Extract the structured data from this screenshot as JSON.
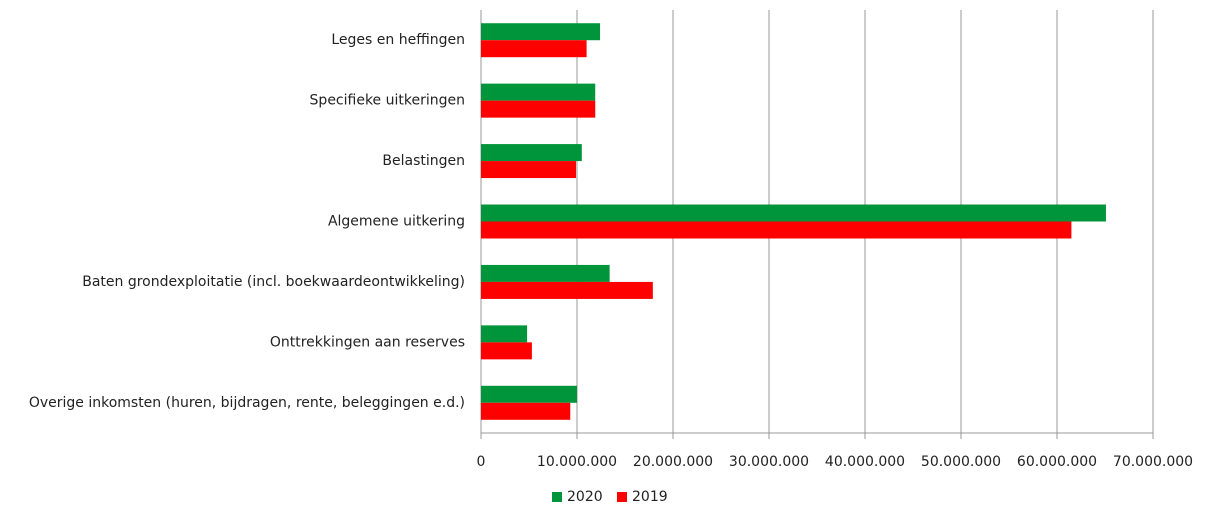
{
  "chart_data": {
    "type": "hbar",
    "categories": [
      "Leges en heffingen",
      "Specifieke uitkeringen",
      "Belastingen",
      "Algemene uitkering",
      "Baten grondexploitatie (incl. boekwaardeontwikkeling)",
      "Onttrekkingen aan reserves",
      "Overige inkomsten (huren, bijdragen, rente, beleggingen e.d.)"
    ],
    "series": [
      {
        "name": "2020",
        "color": "#00953a",
        "values": [
          12400000,
          11900000,
          10500000,
          65100000,
          13400000,
          4800000,
          10000000
        ]
      },
      {
        "name": "2019",
        "color": "#ff0000",
        "values": [
          11000000,
          11900000,
          9900000,
          61500000,
          17900000,
          5300000,
          9300000
        ]
      }
    ],
    "xlim": [
      0,
      70000000
    ],
    "xticks": [
      0,
      {
        "value": 10000000,
        "label": "10.000.000"
      },
      {
        "value": 20000000,
        "label": "20.000.000"
      },
      {
        "value": 30000000,
        "label": "30.000.000"
      },
      {
        "value": 40000000,
        "label": "40.000.000"
      },
      {
        "value": 50000000,
        "label": "50.000.000"
      },
      {
        "value": 60000000,
        "label": "60.000.000"
      },
      {
        "value": 70000000,
        "label": "70.000.000"
      }
    ],
    "grid": true,
    "legend": "bottom"
  }
}
